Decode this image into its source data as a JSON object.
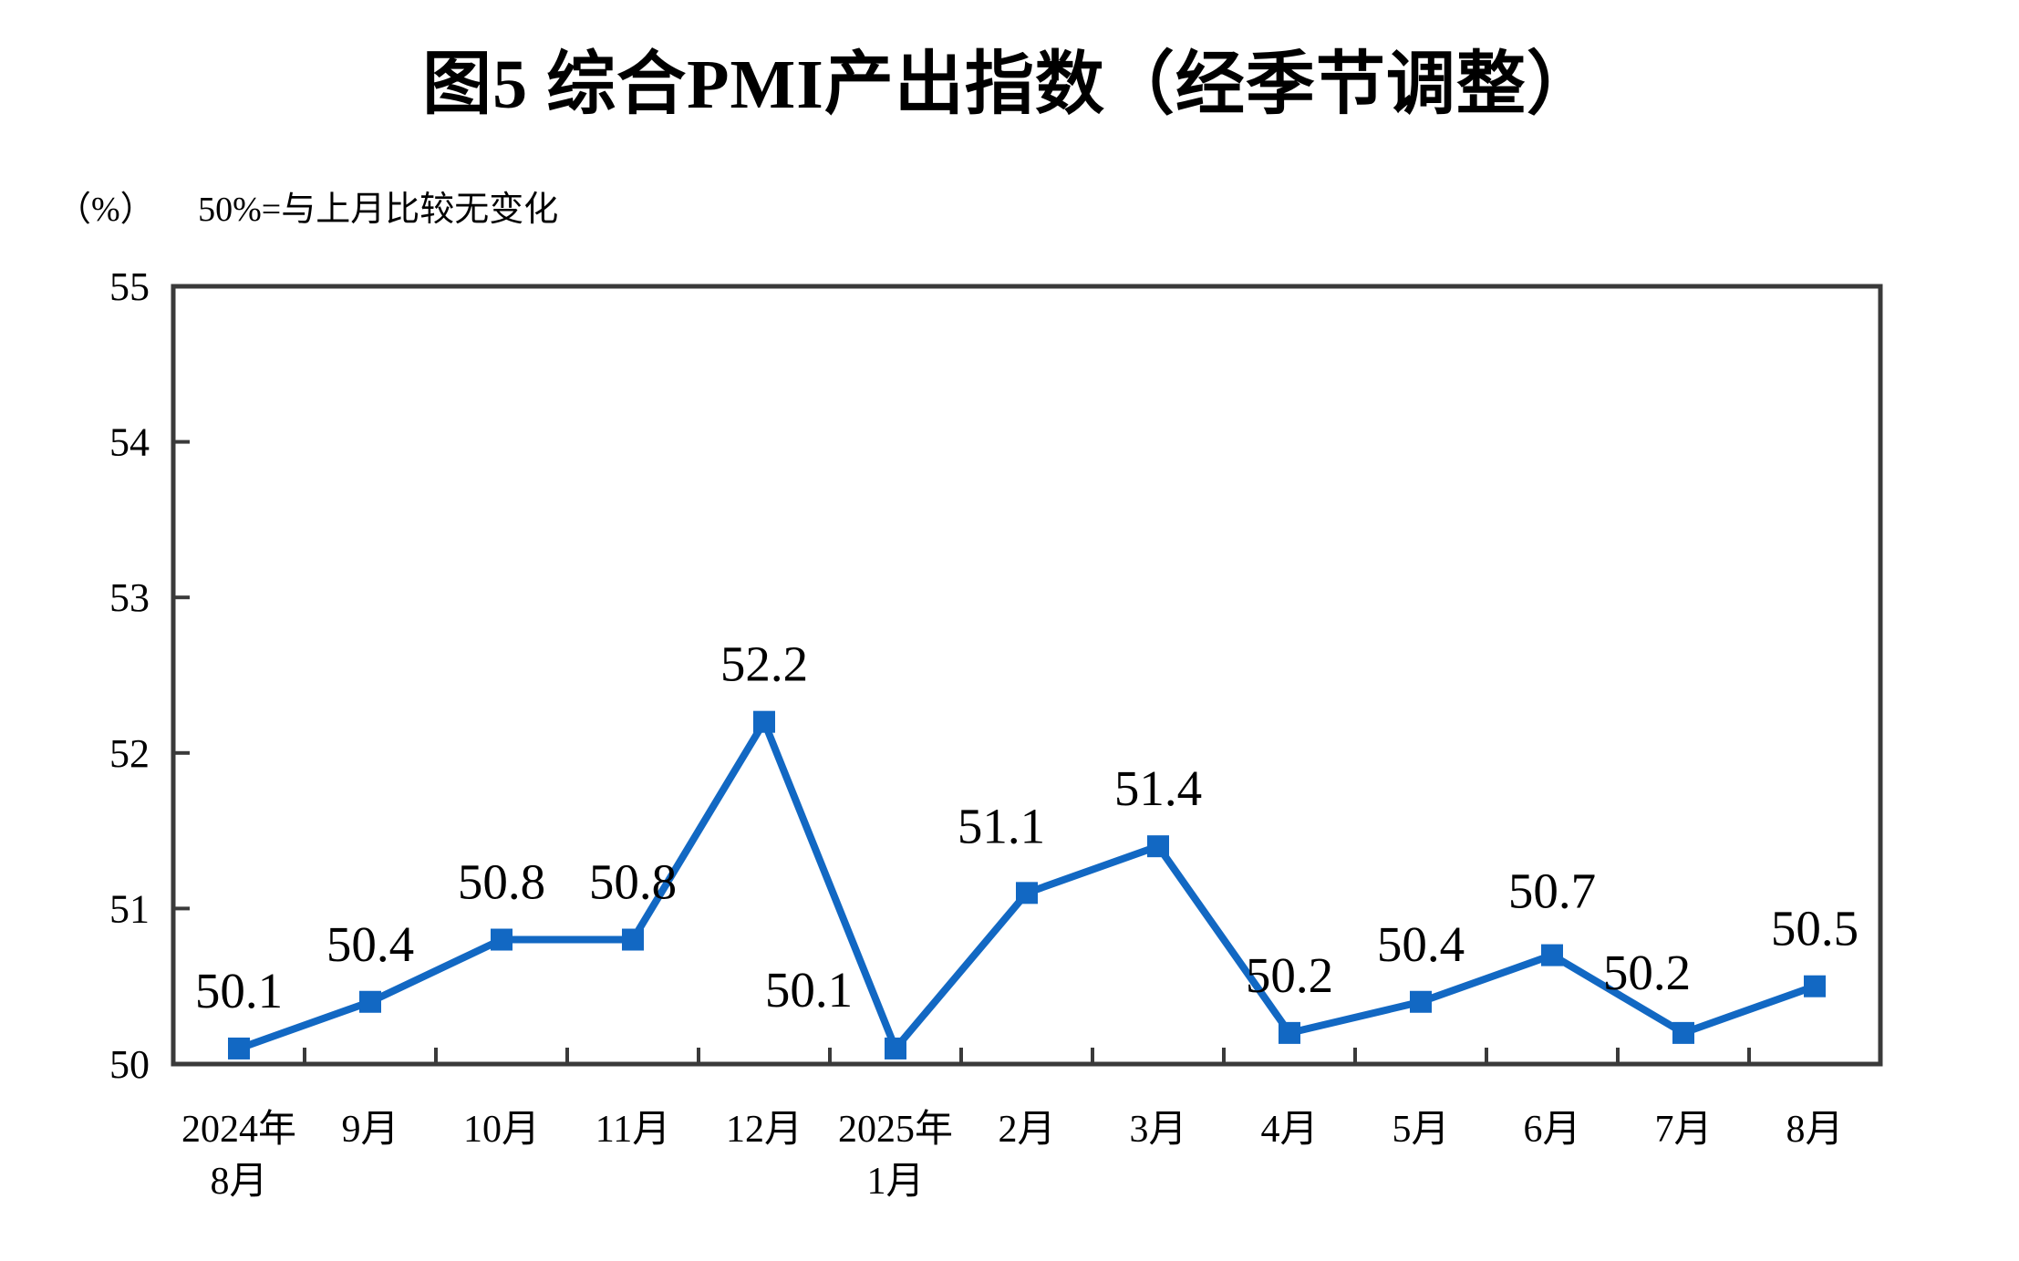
{
  "chart_data": {
    "type": "line",
    "title": "图5 综合PMI产出指数（经季节调整）",
    "unit_label": "（%）",
    "note": "50%=与上月比较无变化",
    "categories": [
      [
        "2024年",
        "8月"
      ],
      [
        "9月"
      ],
      [
        "10月"
      ],
      [
        "11月"
      ],
      [
        "12月"
      ],
      [
        "2025年",
        "1月"
      ],
      [
        "2月"
      ],
      [
        "3月"
      ],
      [
        "4月"
      ],
      [
        "5月"
      ],
      [
        "6月"
      ],
      [
        "7月"
      ],
      [
        "8月"
      ]
    ],
    "values": [
      50.1,
      50.4,
      50.8,
      50.8,
      52.2,
      50.1,
      51.1,
      51.4,
      50.2,
      50.4,
      50.7,
      50.2,
      50.5
    ],
    "data_labels": [
      "50.1",
      "50.4",
      "50.8",
      "50.8",
      "52.2",
      "50.1",
      "51.1",
      "51.4",
      "50.2",
      "50.4",
      "50.7",
      "50.2",
      "50.5"
    ],
    "ylim": [
      50,
      55
    ],
    "yticks": [
      50,
      51,
      52,
      53,
      54,
      55
    ],
    "grid": false,
    "legend_position": "none",
    "marker": "square",
    "line_color": "#1268C3",
    "axis_color": "#3A3A3A",
    "text_color": "#000000",
    "background_color": "#FFFFFF"
  }
}
